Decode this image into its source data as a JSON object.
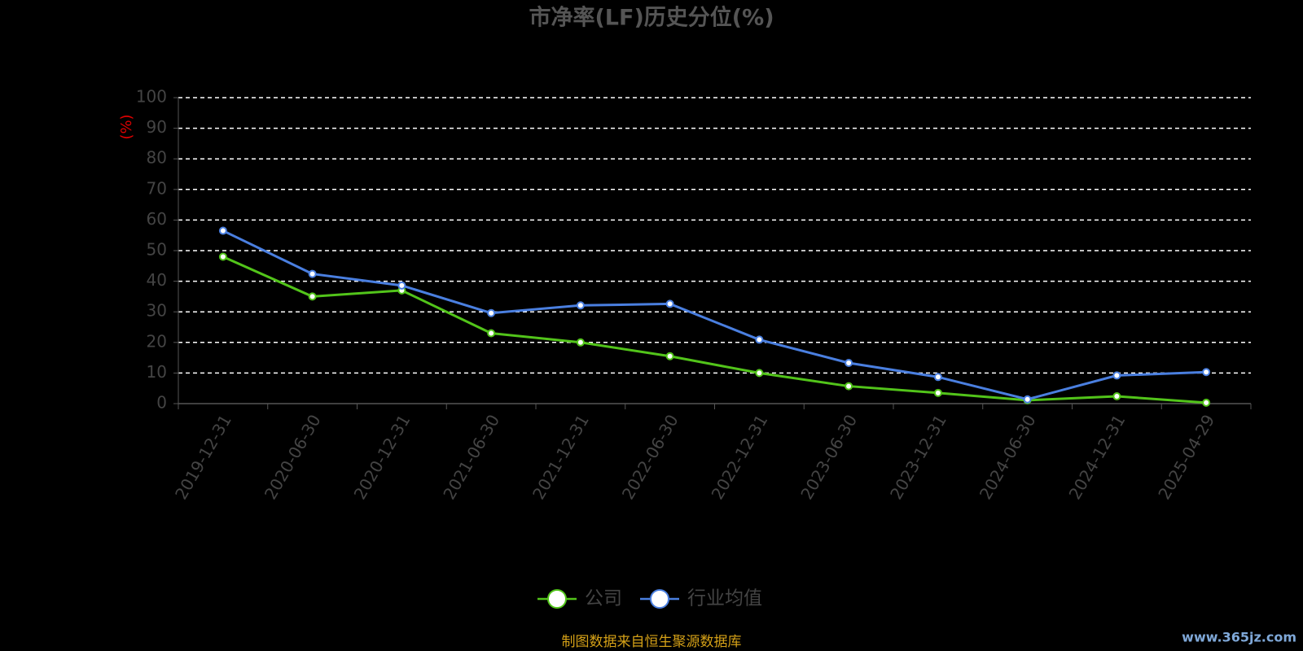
{
  "chart_data": {
    "type": "line",
    "title": "市净率(LF)历史分位(%)",
    "y_axis_label": "(%)",
    "categories": [
      "2019-12-31",
      "2020-06-30",
      "2020-12-31",
      "2021-06-30",
      "2021-12-31",
      "2022-06-30",
      "2022-12-31",
      "2023-06-30",
      "2023-12-31",
      "2024-06-30",
      "2024-12-31",
      "2025-04-29"
    ],
    "series": [
      {
        "name": "公司",
        "color": "#52c41a",
        "values": [
          48,
          35,
          37,
          23,
          20,
          15.5,
          10,
          5.7,
          3.5,
          1.1,
          2.4,
          0.3
        ]
      },
      {
        "name": "行业均值",
        "color": "#4a7fe0",
        "values": [
          56.5,
          42.4,
          38.6,
          29.6,
          32.1,
          32.6,
          20.9,
          13.3,
          8.7,
          1.4,
          9.2,
          10.3
        ]
      }
    ],
    "ylim": [
      0,
      100
    ],
    "yticks": [
      0,
      10,
      20,
      30,
      40,
      50,
      60,
      70,
      80,
      90,
      100
    ],
    "grid": true,
    "footer": "制图数据来自恒生聚源数据库",
    "watermark": "www.365jz.com"
  }
}
